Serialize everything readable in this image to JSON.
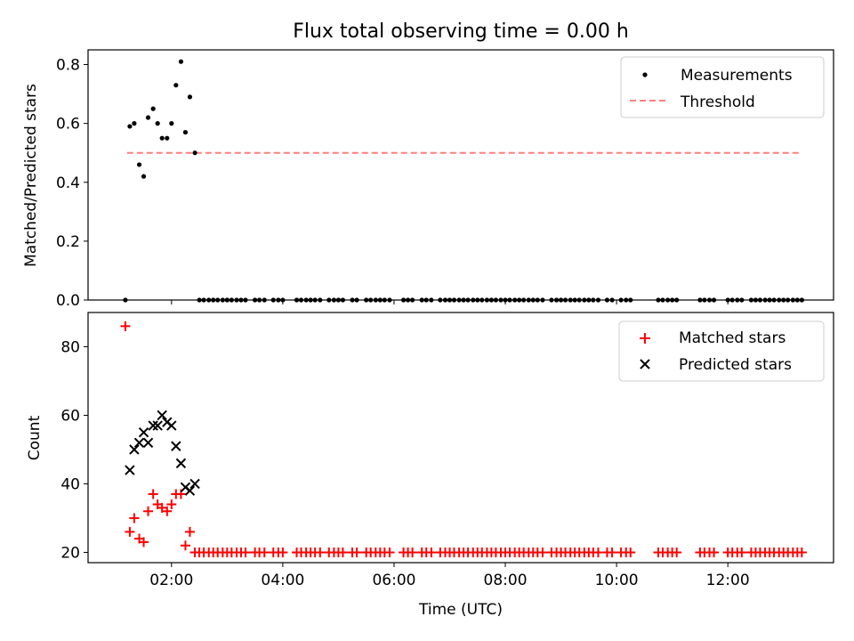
{
  "title": "Flux total observing time = 0.00 h",
  "colors": {
    "measurements": "#000000",
    "threshold": "#ff7f7f",
    "matched": "#ff0000",
    "predicted": "#000000"
  },
  "chart_data": [
    {
      "type": "scatter",
      "ylabel": "Matched/Predicted stars",
      "xlim": [
        0.5,
        13.9
      ],
      "ylim": [
        0.0,
        0.85
      ],
      "yticks": [
        0.0,
        0.2,
        0.4,
        0.6,
        0.8
      ],
      "ytick_labels": [
        "0.0",
        "0.2",
        "0.4",
        "0.6",
        "0.8"
      ],
      "legend": {
        "placement": "top-right",
        "entries": [
          "Measurements",
          "Threshold"
        ]
      },
      "threshold": {
        "name": "Threshold",
        "value": 0.5,
        "x_range": [
          1.2,
          13.3
        ]
      },
      "series": [
        {
          "name": "Measurements",
          "x": [
            1.17,
            1.25,
            1.33,
            1.42,
            1.5,
            1.58,
            1.67,
            1.75,
            1.83,
            1.92,
            2.0,
            2.08,
            2.17,
            2.25,
            2.33,
            2.42,
            2.5,
            2.58,
            2.67,
            2.75,
            2.83,
            2.92,
            3.0,
            3.08,
            3.17,
            3.25,
            3.33,
            3.5,
            3.58,
            3.67,
            3.83,
            3.92,
            4.0,
            4.25,
            4.33,
            4.42,
            4.5,
            4.58,
            4.67,
            4.83,
            4.92,
            5.0,
            5.08,
            5.25,
            5.33,
            5.5,
            5.58,
            5.67,
            5.75,
            5.83,
            5.92,
            6.17,
            6.25,
            6.33,
            6.5,
            6.58,
            6.67,
            6.83,
            6.92,
            7.0,
            7.08,
            7.17,
            7.25,
            7.33,
            7.42,
            7.5,
            7.58,
            7.67,
            7.75,
            7.83,
            7.92,
            8.0,
            8.08,
            8.17,
            8.25,
            8.33,
            8.42,
            8.5,
            8.58,
            8.67,
            8.83,
            8.92,
            9.0,
            9.08,
            9.17,
            9.25,
            9.33,
            9.42,
            9.5,
            9.58,
            9.67,
            9.83,
            9.92,
            10.08,
            10.17,
            10.25,
            10.75,
            10.83,
            10.92,
            11.0,
            11.08,
            11.5,
            11.58,
            11.67,
            11.75,
            12.0,
            12.08,
            12.17,
            12.25,
            12.42,
            12.5,
            12.58,
            12.67,
            12.75,
            12.83,
            12.92,
            13.0,
            13.08,
            13.17,
            13.25,
            13.33
          ],
          "y": [
            0.0,
            0.59,
            0.6,
            0.46,
            0.42,
            0.62,
            0.65,
            0.6,
            0.55,
            0.55,
            0.6,
            0.73,
            0.81,
            0.57,
            0.69,
            0.5,
            0.0,
            0.0,
            0.0,
            0.0,
            0.0,
            0.0,
            0.0,
            0.0,
            0.0,
            0.0,
            0.0,
            0.0,
            0.0,
            0.0,
            0.0,
            0.0,
            0.0,
            0.0,
            0.0,
            0.0,
            0.0,
            0.0,
            0.0,
            0.0,
            0.0,
            0.0,
            0.0,
            0.0,
            0.0,
            0.0,
            0.0,
            0.0,
            0.0,
            0.0,
            0.0,
            0.0,
            0.0,
            0.0,
            0.0,
            0.0,
            0.0,
            0.0,
            0.0,
            0.0,
            0.0,
            0.0,
            0.0,
            0.0,
            0.0,
            0.0,
            0.0,
            0.0,
            0.0,
            0.0,
            0.0,
            0.0,
            0.0,
            0.0,
            0.0,
            0.0,
            0.0,
            0.0,
            0.0,
            0.0,
            0.0,
            0.0,
            0.0,
            0.0,
            0.0,
            0.0,
            0.0,
            0.0,
            0.0,
            0.0,
            0.0,
            0.0,
            0.0,
            0.0,
            0.0,
            0.0,
            0.0,
            0.0,
            0.0,
            0.0,
            0.0,
            0.0,
            0.0,
            0.0,
            0.0,
            0.0,
            0.0,
            0.0,
            0.0,
            0.0,
            0.0,
            0.0,
            0.0,
            0.0,
            0.0,
            0.0,
            0.0,
            0.0,
            0.0,
            0.0,
            0.0
          ]
        }
      ]
    },
    {
      "type": "scatter",
      "xlabel": "Time (UTC)",
      "ylabel": "Count",
      "xlim": [
        0.5,
        13.9
      ],
      "ylim": [
        17,
        90
      ],
      "xticks": [
        2,
        4,
        6,
        8,
        10,
        12
      ],
      "xtick_labels": [
        "02:00",
        "04:00",
        "06:00",
        "08:00",
        "10:00",
        "12:00"
      ],
      "yticks": [
        20,
        40,
        60,
        80
      ],
      "ytick_labels": [
        "20",
        "40",
        "60",
        "80"
      ],
      "legend": {
        "placement": "top-right",
        "entries": [
          "Matched stars",
          "Predicted stars"
        ]
      },
      "series": [
        {
          "name": "Matched stars",
          "marker": "+",
          "x": [
            1.17,
            1.25,
            1.33,
            1.42,
            1.5,
            1.58,
            1.67,
            1.75,
            1.83,
            1.92,
            2.0,
            2.08,
            2.17,
            2.25,
            2.33,
            2.42,
            2.5,
            2.58,
            2.67,
            2.75,
            2.83,
            2.92,
            3.0,
            3.08,
            3.17,
            3.25,
            3.33,
            3.5,
            3.58,
            3.67,
            3.83,
            3.92,
            4.0,
            4.25,
            4.33,
            4.42,
            4.5,
            4.58,
            4.67,
            4.83,
            4.92,
            5.0,
            5.08,
            5.25,
            5.33,
            5.5,
            5.58,
            5.67,
            5.75,
            5.83,
            5.92,
            6.17,
            6.25,
            6.33,
            6.5,
            6.58,
            6.67,
            6.83,
            6.92,
            7.0,
            7.08,
            7.17,
            7.25,
            7.33,
            7.42,
            7.5,
            7.58,
            7.67,
            7.75,
            7.83,
            7.92,
            8.0,
            8.08,
            8.17,
            8.25,
            8.33,
            8.42,
            8.5,
            8.58,
            8.67,
            8.83,
            8.92,
            9.0,
            9.08,
            9.17,
            9.25,
            9.33,
            9.42,
            9.5,
            9.58,
            9.67,
            9.83,
            9.92,
            10.08,
            10.17,
            10.25,
            10.75,
            10.83,
            10.92,
            11.0,
            11.08,
            11.5,
            11.58,
            11.67,
            11.75,
            12.0,
            12.08,
            12.17,
            12.25,
            12.42,
            12.5,
            12.58,
            12.67,
            12.75,
            12.83,
            12.92,
            13.0,
            13.08,
            13.17,
            13.25,
            13.33
          ],
          "y": [
            86,
            26,
            30,
            24,
            23,
            32,
            37,
            34,
            33,
            32,
            34,
            37,
            37,
            22,
            26,
            20,
            20,
            20,
            20,
            20,
            20,
            20,
            20,
            20,
            20,
            20,
            20,
            20,
            20,
            20,
            20,
            20,
            20,
            20,
            20,
            20,
            20,
            20,
            20,
            20,
            20,
            20,
            20,
            20,
            20,
            20,
            20,
            20,
            20,
            20,
            20,
            20,
            20,
            20,
            20,
            20,
            20,
            20,
            20,
            20,
            20,
            20,
            20,
            20,
            20,
            20,
            20,
            20,
            20,
            20,
            20,
            20,
            20,
            20,
            20,
            20,
            20,
            20,
            20,
            20,
            20,
            20,
            20,
            20,
            20,
            20,
            20,
            20,
            20,
            20,
            20,
            20,
            20,
            20,
            20,
            20,
            20,
            20,
            20,
            20,
            20,
            20,
            20,
            20,
            20,
            20,
            20,
            20,
            20,
            20,
            20,
            20,
            20,
            20,
            20,
            20,
            20,
            20,
            20,
            20,
            20
          ]
        },
        {
          "name": "Predicted stars",
          "marker": "x",
          "x": [
            1.25,
            1.33,
            1.42,
            1.5,
            1.58,
            1.67,
            1.75,
            1.83,
            1.92,
            2.0,
            2.08,
            2.17,
            2.25,
            2.33,
            2.42
          ],
          "y": [
            44,
            50,
            52,
            55,
            52,
            57,
            57,
            60,
            58,
            57,
            51,
            46,
            39,
            38,
            40
          ]
        }
      ]
    }
  ]
}
